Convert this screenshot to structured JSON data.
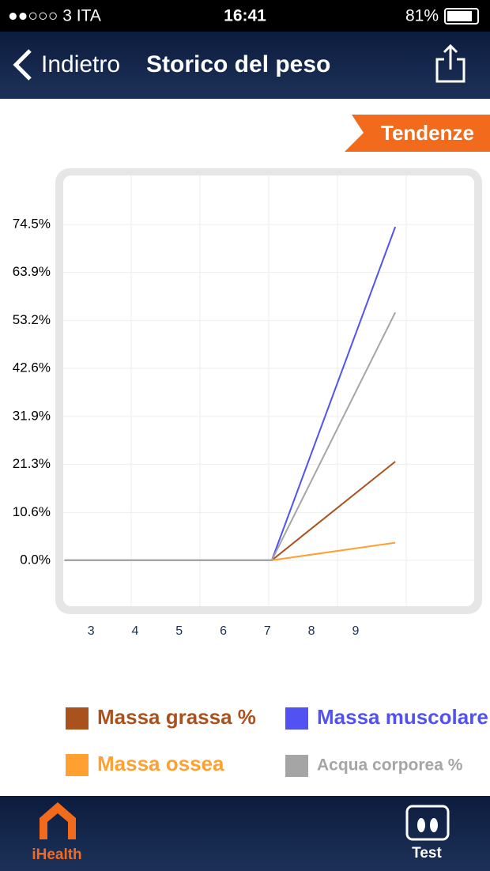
{
  "status_bar": {
    "carrier": "●●○○○ 3 ITA",
    "time": "16:41",
    "battery": "81%"
  },
  "nav_bar": {
    "back": "Indietro",
    "title": "Storico del peso"
  },
  "trend_button": "Tendenze",
  "chart_data": {
    "type": "line",
    "x": [
      2.4,
      7.1,
      9.9
    ],
    "xlim": [
      2.37,
      11.69
    ],
    "xticks": [
      3,
      4,
      5,
      6,
      7,
      8,
      9
    ],
    "ylim": [
      -10.2,
      85.4
    ],
    "yticks": [
      {
        "value": 0,
        "label": "0.0%"
      },
      {
        "value": 10.6,
        "label": "10.6%"
      },
      {
        "value": 21.3,
        "label": "21.3%"
      },
      {
        "value": 31.9,
        "label": "31.9%"
      },
      {
        "value": 42.6,
        "label": "42.6%"
      },
      {
        "value": 53.2,
        "label": "53.2%"
      },
      {
        "value": 63.9,
        "label": "63.9%"
      },
      {
        "value": 74.5,
        "label": "74.5%"
      }
    ],
    "grid": true,
    "series": [
      {
        "name": "Massa grassa %",
        "color": "#a9521e",
        "values": [
          0,
          0,
          21.9
        ]
      },
      {
        "name": "Massa muscolare",
        "color": "#5252f2",
        "values": [
          0,
          0,
          74.0
        ]
      },
      {
        "name": "Massa ossea",
        "color": "#ffa030",
        "values": [
          0,
          0,
          3.9
        ]
      },
      {
        "name": "Acqua corporea %",
        "color": "#a5a5a5",
        "values": [
          0,
          0,
          55.0
        ]
      }
    ]
  },
  "tab_bar": {
    "items": [
      "iHealth",
      "Test"
    ]
  }
}
